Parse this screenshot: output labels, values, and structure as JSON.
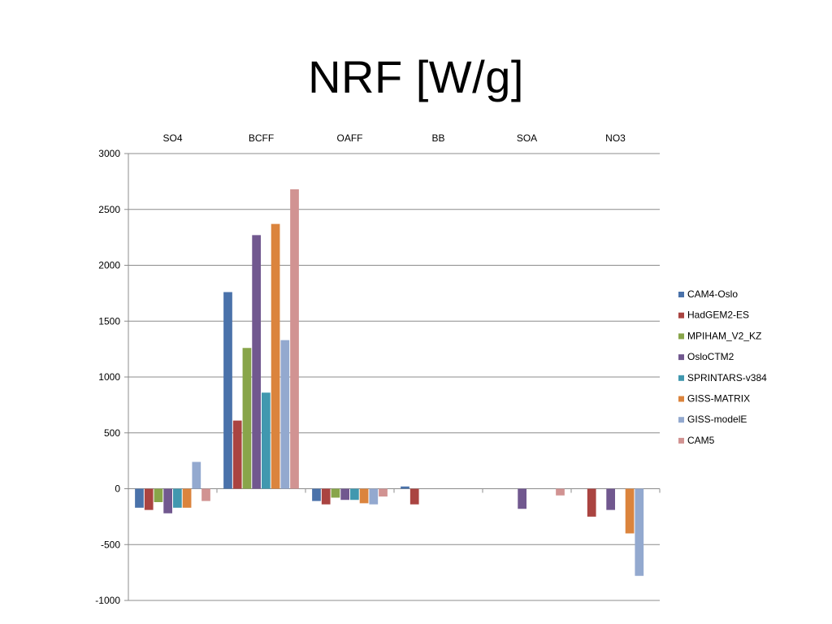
{
  "slide": {
    "title": "NRF [W/g]"
  },
  "chart_data": {
    "type": "bar",
    "title": "NRF [W/g]",
    "categories": [
      "SO4",
      "BCFF",
      "OAFF",
      "BB",
      "SOA",
      "NO3"
    ],
    "ylim": [
      -1000,
      3000
    ],
    "yticks": [
      3000,
      2500,
      2000,
      1500,
      1000,
      500,
      0,
      -500,
      -1000
    ],
    "grid": true,
    "legend_position": "right",
    "category_labels_position": "top",
    "series": [
      {
        "name": "CAM4-Oslo",
        "color": "#4a72aa",
        "values": [
          -170,
          1760,
          -110,
          20,
          null,
          null
        ]
      },
      {
        "name": "HadGEM2-ES",
        "color": "#aa4441",
        "values": [
          -190,
          610,
          -140,
          -140,
          null,
          -250
        ]
      },
      {
        "name": "MPIHAM_V2_KZ",
        "color": "#88a54a",
        "values": [
          -120,
          1260,
          -80,
          null,
          null,
          null
        ]
      },
      {
        "name": "OsloCTM2",
        "color": "#71588f",
        "values": [
          -220,
          2270,
          -100,
          null,
          -180,
          -190
        ]
      },
      {
        "name": "SPRINTARS-v384",
        "color": "#4198af",
        "values": [
          -170,
          860,
          -100,
          null,
          null,
          null
        ]
      },
      {
        "name": "GISS-MATRIX",
        "color": "#db843d",
        "values": [
          -170,
          2370,
          -130,
          null,
          null,
          -400
        ]
      },
      {
        "name": "GISS-modelE",
        "color": "#93a9cf",
        "values": [
          240,
          1330,
          -140,
          null,
          null,
          -780
        ]
      },
      {
        "name": "CAM5",
        "color": "#d19392",
        "values": [
          -110,
          2680,
          -70,
          null,
          -60,
          null
        ]
      }
    ]
  }
}
